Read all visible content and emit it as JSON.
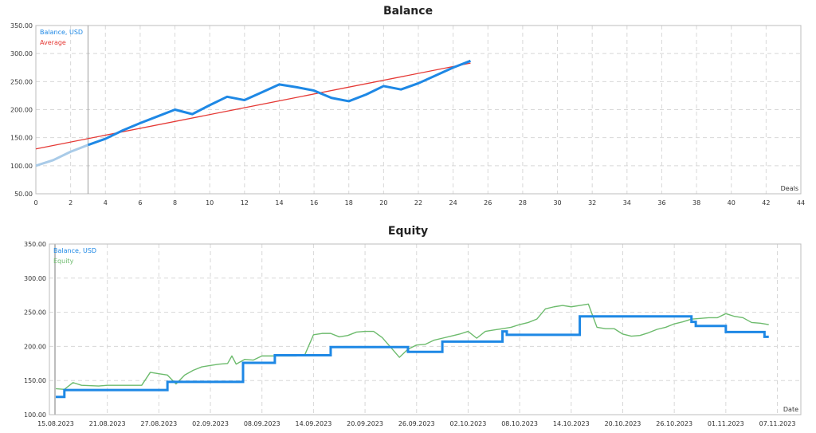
{
  "chart_data": [
    {
      "type": "line",
      "title": "Balance",
      "xlabel": "Deals",
      "ylabel": "",
      "xlim": [
        0,
        44
      ],
      "ylim": [
        50,
        350
      ],
      "grid": true,
      "legend_position": "top-left",
      "x_ticks": [
        0,
        2,
        4,
        6,
        8,
        10,
        12,
        14,
        16,
        18,
        20,
        22,
        24,
        26,
        28,
        30,
        32,
        34,
        36,
        38,
        40,
        42,
        44
      ],
      "y_ticks": [
        "50.00",
        "100.00",
        "150.00",
        "200.00",
        "250.00",
        "300.00",
        "350.00"
      ],
      "vertical_marker_at": 3,
      "series": [
        {
          "name": "Balance, USD",
          "color": "#1e88e5",
          "x": [
            0,
            1,
            2,
            3,
            4,
            5,
            6,
            7,
            8,
            9,
            10,
            11,
            12,
            13,
            14,
            15,
            16,
            17,
            18,
            19,
            20,
            21,
            22,
            23,
            24,
            25
          ],
          "values": [
            100,
            110,
            125,
            137,
            148,
            163,
            176,
            188,
            200,
            192,
            208,
            223,
            217,
            231,
            245,
            240,
            234,
            221,
            215,
            227,
            242,
            236,
            247,
            261,
            275,
            287
          ]
        },
        {
          "name": "Average",
          "color": "#e53935",
          "x": [
            0,
            25
          ],
          "values": [
            130,
            283
          ]
        }
      ]
    },
    {
      "type": "line",
      "title": "Equity",
      "xlabel": "Date",
      "ylabel": "",
      "ylim": [
        100,
        350
      ],
      "grid": true,
      "legend_position": "top-left",
      "x_ticks": [
        "15.08.2023",
        "21.08.2023",
        "27.08.2023",
        "02.09.2023",
        "08.09.2023",
        "14.09.2023",
        "20.09.2023",
        "26.09.2023",
        "02.10.2023",
        "08.10.2023",
        "14.10.2023",
        "20.10.2023",
        "26.10.2023",
        "01.11.2023",
        "07.11.2023"
      ],
      "y_ticks": [
        "100.00",
        "150.00",
        "200.00",
        "250.00",
        "300.00",
        "350.00"
      ],
      "series": [
        {
          "name": "Balance, USD",
          "color": "#1e88e5",
          "step": true,
          "x_days": [
            0,
            1,
            5.5,
            13,
            20.5,
            21.8,
            22.5,
            25.5,
            32,
            35.5,
            41,
            42,
            43,
            45,
            51.5,
            52,
            52.5,
            53,
            61,
            61.5,
            70.5,
            74,
            74.5,
            78,
            82,
            82.5,
            83
          ],
          "values": [
            126,
            136,
            136,
            148,
            148,
            176,
            176,
            187,
            199,
            199,
            192,
            192,
            192,
            207,
            207,
            222,
            217,
            217,
            244,
            244,
            244,
            236,
            230,
            221,
            221,
            214,
            214
          ]
        },
        {
          "name": "Equity",
          "color": "#6dbb6d",
          "x_days": [
            0,
            1,
            2,
            3,
            5,
            6,
            8,
            10,
            11,
            12,
            13,
            14,
            15,
            16,
            17,
            18,
            19,
            20,
            20.5,
            21,
            22,
            23,
            24,
            25,
            26,
            27,
            28,
            29,
            30,
            31,
            32,
            33,
            34,
            35,
            36,
            37,
            38,
            40,
            41,
            42,
            43,
            44,
            45,
            46,
            47,
            48,
            49,
            50,
            51,
            52,
            53,
            54,
            55,
            56,
            57,
            58,
            59,
            60,
            61,
            62,
            63,
            64,
            65,
            66,
            67,
            68,
            69,
            70,
            71,
            72,
            73,
            74,
            75,
            76,
            77,
            78,
            79,
            80,
            81,
            82,
            83
          ],
          "values": [
            138,
            137,
            147,
            143,
            142,
            143,
            143,
            143,
            162,
            160,
            158,
            145,
            158,
            165,
            170,
            172,
            174,
            175,
            186,
            174,
            181,
            180,
            186,
            186,
            186,
            186,
            186,
            188,
            217,
            219,
            219,
            214,
            216,
            221,
            222,
            222,
            213,
            184,
            196,
            202,
            203,
            209,
            212,
            215,
            218,
            222,
            212,
            222,
            224,
            226,
            228,
            232,
            235,
            240,
            255,
            258,
            260,
            258,
            260,
            262,
            228,
            226,
            226,
            218,
            215,
            216,
            220,
            225,
            228,
            233,
            236,
            240,
            241,
            242,
            242,
            248,
            244,
            242,
            235,
            234,
            232
          ]
        }
      ]
    }
  ],
  "balance_chart": {
    "title": "Balance",
    "x_axis_label": "Deals",
    "legend": [
      {
        "label": "Balance, USD",
        "color": "#1e88e5"
      },
      {
        "label": "Average",
        "color": "#e53935"
      }
    ]
  },
  "equity_chart": {
    "title": "Equity",
    "x_axis_label": "Date",
    "legend": [
      {
        "label": "Balance, USD",
        "color": "#1e88e5"
      },
      {
        "label": "Equity",
        "color": "#6dbb6d"
      }
    ]
  }
}
